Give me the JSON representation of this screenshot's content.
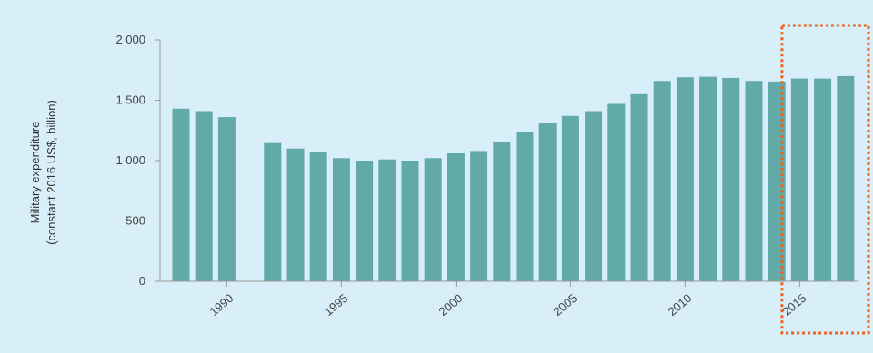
{
  "chart_data": {
    "type": "bar",
    "ylabel_lines": [
      "Military expenditure",
      "(constant 2016 US$, billion)"
    ],
    "ylim": [
      0,
      2000
    ],
    "y_ticks": [
      0,
      500,
      1000,
      1500,
      2000
    ],
    "y_tick_labels": [
      "0",
      "500",
      "1 000",
      "1 500",
      "2 000"
    ],
    "x_tick_labels": [
      "1990",
      "1995",
      "2000",
      "2005",
      "2010",
      "2015"
    ],
    "x_tick_years": [
      1990,
      1995,
      2000,
      2005,
      2010,
      2015
    ],
    "x": [
      1988,
      1989,
      1990,
      1991,
      1992,
      1993,
      1994,
      1995,
      1996,
      1997,
      1998,
      1999,
      2000,
      2001,
      2002,
      2003,
      2004,
      2005,
      2006,
      2007,
      2008,
      2009,
      2010,
      2011,
      2012,
      2013,
      2014,
      2015,
      2016,
      2017
    ],
    "values": [
      1430,
      1410,
      1360,
      null,
      1145,
      1100,
      1070,
      1020,
      1000,
      1010,
      1000,
      1020,
      1060,
      1080,
      1155,
      1235,
      1310,
      1370,
      1410,
      1470,
      1550,
      1660,
      1690,
      1695,
      1685,
      1660,
      1655,
      1680,
      1680,
      1700
    ],
    "colors": {
      "bar": "#62aaa8",
      "axis": "#9a9a9a",
      "highlight_box": "#e8641e"
    },
    "highlight_years": [
      2015,
      2016,
      2017
    ],
    "grid": false
  }
}
